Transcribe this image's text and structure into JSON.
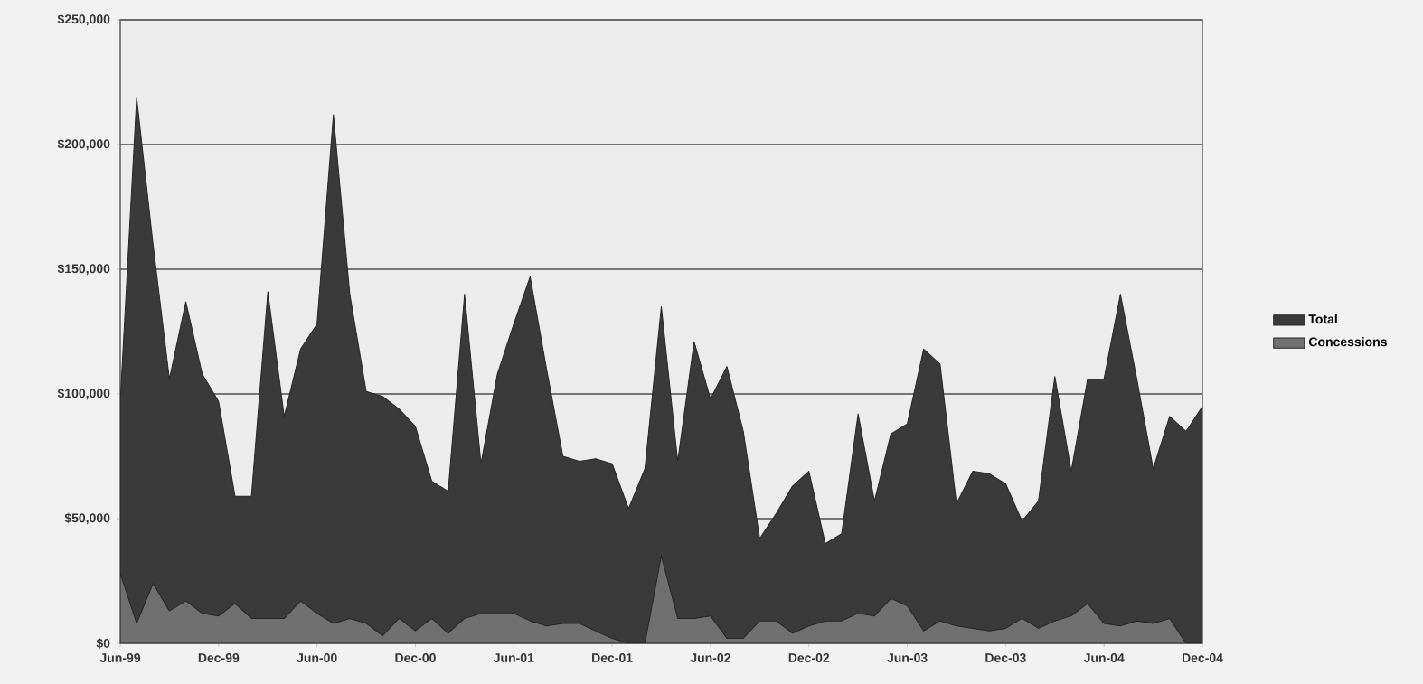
{
  "chart_data": {
    "type": "area",
    "categories": [
      "Jun-99",
      null,
      null,
      null,
      null,
      null,
      "Dec-99",
      null,
      null,
      null,
      null,
      null,
      "Jun-00",
      null,
      null,
      null,
      null,
      null,
      "Dec-00",
      null,
      null,
      null,
      null,
      null,
      "Jun-01",
      null,
      null,
      null,
      null,
      null,
      "Dec-01",
      null,
      null,
      null,
      null,
      null,
      "Jun-02",
      null,
      null,
      null,
      null,
      null,
      "Dec-02",
      null,
      null,
      null,
      null,
      null,
      "Jun-03",
      null,
      null,
      null,
      null,
      null,
      "Dec-03",
      null,
      null,
      null,
      null,
      null,
      "Jun-04",
      null,
      null,
      null,
      null,
      null,
      "Dec-04"
    ],
    "series": [
      {
        "name": "Total",
        "color": "#3a3a3a",
        "values": [
          97000,
          219000,
          160000,
          106000,
          137000,
          108000,
          97000,
          59000,
          59000,
          141000,
          91000,
          118000,
          128000,
          212000,
          140000,
          101000,
          99000,
          94000,
          87000,
          65000,
          61000,
          140000,
          72000,
          108000,
          128000,
          147000,
          110000,
          75000,
          73000,
          74000,
          72000,
          54000,
          70000,
          135000,
          73000,
          121000,
          98000,
          111000,
          85000,
          42000,
          52000,
          63000,
          69000,
          40000,
          44000,
          92000,
          57000,
          84000,
          88000,
          118000,
          112000,
          56000,
          69000,
          68000,
          64000,
          49000,
          57000,
          107000,
          69000,
          106000,
          106000,
          140000,
          106000,
          70000,
          91000,
          85000,
          95000
        ]
      },
      {
        "name": "Concessions",
        "color": "#707070",
        "values": [
          28000,
          8000,
          24000,
          13000,
          17000,
          12000,
          11000,
          16000,
          10000,
          10000,
          10000,
          17000,
          12000,
          8000,
          10000,
          8000,
          3000,
          10000,
          5000,
          10000,
          4000,
          10000,
          12000,
          12000,
          12000,
          9000,
          7000,
          8000,
          8000,
          5000,
          2000,
          0,
          0,
          35000,
          10000,
          10000,
          11000,
          2000,
          2000,
          9000,
          9000,
          4000,
          7000,
          9000,
          9000,
          12000,
          11000,
          18000,
          15000,
          5000,
          9000,
          7000,
          6000,
          5000,
          6000,
          10000,
          6000,
          9000,
          11000,
          16000,
          8000,
          7000,
          9000,
          8000,
          10000,
          0,
          0
        ]
      }
    ],
    "ylim": [
      0,
      250000
    ],
    "yticks": [
      {
        "value": 0,
        "label": "$0"
      },
      {
        "value": 50000,
        "label": "$50,000"
      },
      {
        "value": 100000,
        "label": "$100,000"
      },
      {
        "value": 150000,
        "label": "$150,000"
      },
      {
        "value": 200000,
        "label": "$200,000"
      },
      {
        "value": 250000,
        "label": "$250,000"
      }
    ],
    "grid": "y",
    "legend": "right",
    "stacked": false
  }
}
